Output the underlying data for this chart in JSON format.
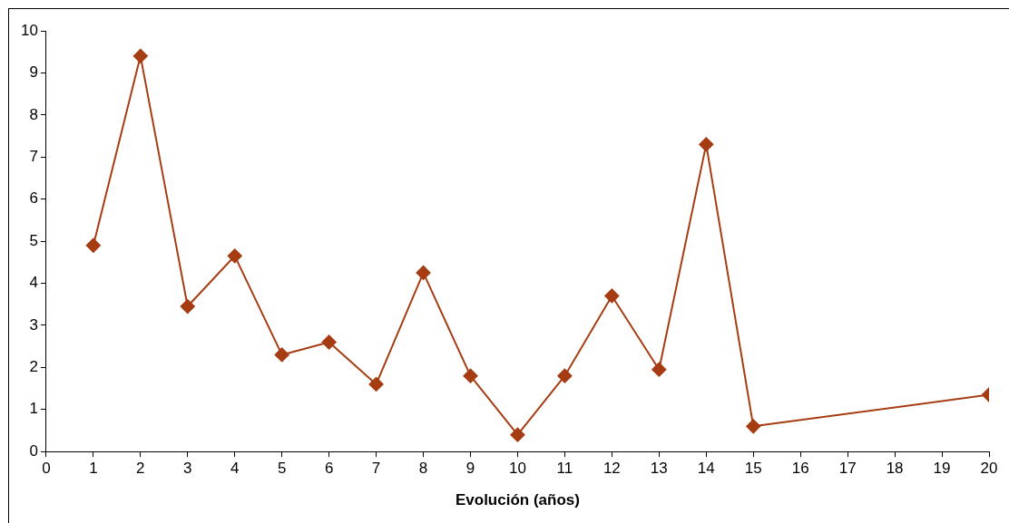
{
  "chart_data": {
    "type": "line",
    "xlabel": "Evolución (años)",
    "x": [
      1,
      2,
      3,
      4,
      5,
      6,
      7,
      8,
      9,
      10,
      11,
      12,
      13,
      14,
      15,
      20
    ],
    "series": [
      {
        "color": "#a63c12",
        "values": [
          4.9,
          9.4,
          3.45,
          4.65,
          2.3,
          2.6,
          1.6,
          4.25,
          1.8,
          0.4,
          1.8,
          3.7,
          1.95,
          7.3,
          0.6,
          1.35
        ]
      }
    ],
    "xlim": [
      0,
      20
    ],
    "xticks": [
      0,
      1,
      2,
      3,
      4,
      5,
      6,
      7,
      8,
      9,
      10,
      11,
      12,
      13,
      14,
      15,
      16,
      17,
      18,
      19,
      20
    ],
    "ylim": [
      0,
      10
    ],
    "yticks": [
      0,
      1,
      2,
      3,
      4,
      5,
      6,
      7,
      8,
      9,
      10
    ],
    "grid": false,
    "legend": false,
    "marker": "diamond",
    "line_style": "solid"
  }
}
